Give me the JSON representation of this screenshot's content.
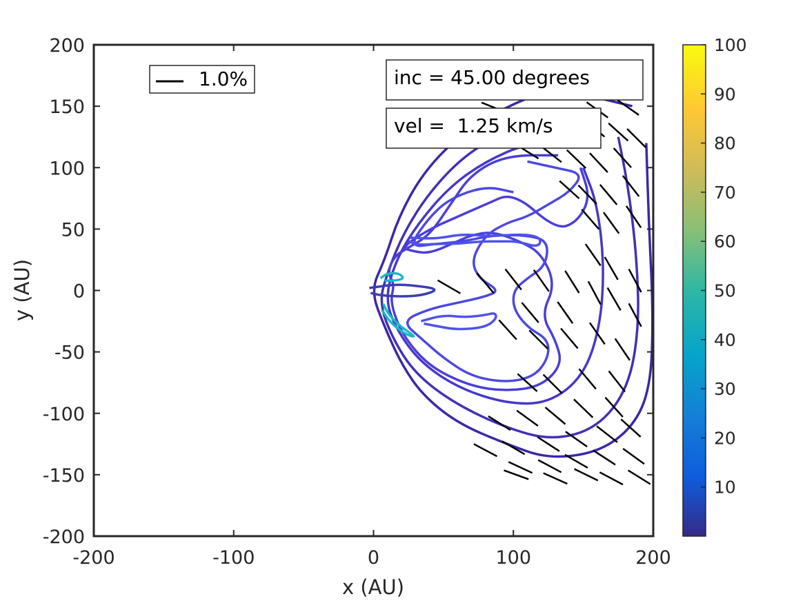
{
  "chart_data": {
    "type": "contour",
    "xlabel": "x (AU)",
    "ylabel": "y (AU)",
    "xlim": [
      -200,
      200
    ],
    "ylim": [
      -200,
      200
    ],
    "x_ticks": [
      "-200",
      "-100",
      "0",
      "100",
      "200"
    ],
    "y_ticks": [
      "200",
      "150",
      "100",
      "50",
      "0",
      "-50",
      "-100",
      "-150",
      "-200"
    ],
    "legend": {
      "label": "1.0%",
      "placement": "top-left"
    },
    "annotations": {
      "inclination": "inc = 45.00 degrees",
      "velocity": "vel =  1.25 km/s"
    },
    "colorbar": {
      "ticks": [
        "100",
        "90",
        "80",
        "70",
        "60",
        "50",
        "40",
        "30",
        "20",
        "10"
      ],
      "range": [
        0,
        100
      ],
      "colors": [
        "#352a87",
        "#0f5cdd",
        "#1481d6",
        "#06a4ca",
        "#2eb7a4",
        "#87bf77",
        "#d1bb59",
        "#fec832",
        "#f9fb0e"
      ]
    },
    "contours": [
      {
        "level": 3,
        "color": "#3e26a8",
        "points": [
          [
            185,
            150
          ],
          [
            160,
            157
          ],
          [
            130,
            165
          ],
          [
            95,
            150
          ],
          [
            60,
            125
          ],
          [
            35,
            95
          ],
          [
            18,
            60
          ],
          [
            8,
            25
          ],
          [
            -2,
            0
          ],
          [
            8,
            -30
          ],
          [
            20,
            -60
          ],
          [
            35,
            -85
          ],
          [
            60,
            -108
          ],
          [
            95,
            -125
          ],
          [
            125,
            -137
          ],
          [
            160,
            -132
          ],
          [
            185,
            -112
          ],
          [
            198,
            -80
          ],
          [
            200,
            -20
          ],
          [
            197,
            50
          ],
          [
            195,
            120
          ]
        ]
      },
      {
        "level": 5,
        "color": "#4131b5",
        "points": [
          [
            160,
            140
          ],
          [
            125,
            140
          ],
          [
            95,
            130
          ],
          [
            65,
            110
          ],
          [
            40,
            80
          ],
          [
            22,
            48
          ],
          [
            10,
            15
          ],
          [
            4,
            -10
          ],
          [
            14,
            -40
          ],
          [
            30,
            -68
          ],
          [
            58,
            -92
          ],
          [
            95,
            -112
          ],
          [
            128,
            -122
          ],
          [
            160,
            -112
          ],
          [
            182,
            -80
          ],
          [
            190,
            -30
          ],
          [
            188,
            30
          ],
          [
            182,
            85
          ],
          [
            175,
            125
          ]
        ]
      },
      {
        "level": 6,
        "color": "#4637c8",
        "points": [
          [
            140,
            120
          ],
          [
            110,
            120
          ],
          [
            80,
            105
          ],
          [
            55,
            85
          ],
          [
            32,
            55
          ],
          [
            16,
            25
          ],
          [
            8,
            -8
          ],
          [
            18,
            -35
          ],
          [
            35,
            -60
          ],
          [
            62,
            -80
          ],
          [
            95,
            -92
          ],
          [
            125,
            -92
          ],
          [
            150,
            -70
          ],
          [
            162,
            -30
          ],
          [
            165,
            20
          ],
          [
            160,
            70
          ],
          [
            150,
            100
          ]
        ]
      },
      {
        "level": 8,
        "color": "#4a3fd8",
        "points": [
          [
            132,
            110
          ],
          [
            95,
            110
          ],
          [
            70,
            95
          ],
          [
            55,
            70
          ],
          [
            40,
            45
          ],
          [
            25,
            35
          ],
          [
            15,
            28
          ],
          [
            10,
            15
          ],
          [
            15,
            5
          ],
          [
            12,
            -8
          ],
          [
            18,
            -30
          ],
          [
            30,
            -50
          ],
          [
            45,
            -65
          ],
          [
            70,
            -78
          ],
          [
            95,
            -82
          ],
          [
            120,
            -78
          ],
          [
            135,
            -60
          ],
          [
            130,
            -40
          ],
          [
            120,
            -20
          ],
          [
            130,
            5
          ],
          [
            120,
            30
          ],
          [
            105,
            40
          ],
          [
            85,
            48
          ],
          [
            70,
            45
          ],
          [
            60,
            40
          ],
          [
            40,
            30
          ],
          [
            28,
            32
          ],
          [
            20,
            35
          ],
          [
            40,
            50
          ],
          [
            60,
            60
          ],
          [
            80,
            70
          ],
          [
            100,
            80
          ],
          [
            130,
            50
          ],
          [
            145,
            55
          ],
          [
            155,
            75
          ],
          [
            148,
            100
          ]
        ]
      },
      {
        "level": 10,
        "color": "#4c48e0",
        "points": [
          [
            100,
            80
          ],
          [
            80,
            85
          ],
          [
            55,
            75
          ],
          [
            40,
            60
          ],
          [
            25,
            35
          ],
          [
            45,
            38
          ],
          [
            65,
            40
          ],
          [
            85,
            45
          ],
          [
            110,
            45
          ],
          [
            125,
            40
          ],
          [
            123,
            20
          ],
          [
            110,
            10
          ],
          [
            100,
            0
          ],
          [
            100,
            -15
          ],
          [
            110,
            -30
          ],
          [
            125,
            -40
          ],
          [
            125,
            -55
          ],
          [
            115,
            -70
          ],
          [
            95,
            -75
          ],
          [
            70,
            -70
          ],
          [
            50,
            -55
          ],
          [
            35,
            -40
          ],
          [
            20,
            -25
          ],
          [
            40,
            -15
          ],
          [
            60,
            -10
          ],
          [
            80,
            -5
          ],
          [
            90,
            0
          ],
          [
            75,
            10
          ],
          [
            70,
            25
          ],
          [
            80,
            45
          ],
          [
            95,
            55
          ],
          [
            110,
            60
          ],
          [
            125,
            70
          ],
          [
            140,
            80
          ],
          [
            150,
            95
          ],
          [
            130,
            100
          ],
          [
            110,
            105
          ]
        ]
      },
      {
        "level": 12,
        "color": "#4f52ea",
        "points": [
          [
            34,
            -25
          ],
          [
            50,
            -20
          ],
          [
            65,
            -22
          ],
          [
            80,
            -20
          ],
          [
            87,
            -18
          ],
          [
            88,
            -23
          ],
          [
            80,
            -30
          ],
          [
            60,
            -32
          ],
          [
            45,
            -29
          ],
          [
            36,
            -27
          ]
        ]
      },
      {
        "level": 12,
        "color": "#4f52ea",
        "points": [
          [
            26,
            43
          ],
          [
            45,
            42
          ],
          [
            63,
            46
          ],
          [
            84,
            44
          ],
          [
            107,
            46
          ],
          [
            120,
            43
          ],
          [
            118,
            35
          ],
          [
            103,
            40
          ],
          [
            92,
            40
          ],
          [
            76,
            40
          ],
          [
            60,
            38
          ],
          [
            45,
            38
          ],
          [
            32,
            37
          ],
          [
            25,
            40
          ]
        ]
      },
      {
        "level": 15,
        "color": "#3b3eb3",
        "points": [
          [
            -3,
            2
          ],
          [
            15,
            5
          ],
          [
            30,
            4
          ],
          [
            47,
            1
          ],
          [
            35,
            -4
          ],
          [
            20,
            -5
          ],
          [
            5,
            -4
          ],
          [
            -2,
            -2
          ]
        ]
      },
      {
        "level": 50,
        "color": "#19b9c2",
        "points": [
          [
            5,
            10
          ],
          [
            10,
            14
          ],
          [
            18,
            14
          ],
          [
            22,
            10
          ],
          [
            16,
            8
          ],
          [
            8,
            8
          ]
        ]
      },
      {
        "level": 50,
        "color": "#19b9c2",
        "points": [
          [
            7,
            -11
          ],
          [
            11,
            -20
          ],
          [
            20,
            -30
          ],
          [
            28,
            -36
          ],
          [
            29,
            -38
          ],
          [
            22,
            -35
          ],
          [
            12,
            -26
          ],
          [
            6,
            -16
          ]
        ]
      }
    ],
    "vectors": [
      {
        "x": 86,
        "y": 149,
        "angle": -22
      },
      {
        "x": 104,
        "y": 141,
        "angle": -26
      },
      {
        "x": 121,
        "y": 137,
        "angle": -30
      },
      {
        "x": 141,
        "y": 134,
        "angle": -35
      },
      {
        "x": 158,
        "y": 132,
        "angle": -40
      },
      {
        "x": 175,
        "y": 129,
        "angle": -42
      },
      {
        "x": 188,
        "y": 124,
        "angle": -45
      },
      {
        "x": 160,
        "y": 147,
        "angle": -36
      },
      {
        "x": 182,
        "y": 149,
        "angle": -35
      },
      {
        "x": 178,
        "y": 108,
        "angle": -48
      },
      {
        "x": 161,
        "y": 104,
        "angle": -47
      },
      {
        "x": 145,
        "y": 107,
        "angle": -44
      },
      {
        "x": 127,
        "y": 111,
        "angle": -38
      },
      {
        "x": 110,
        "y": 113,
        "angle": -32
      },
      {
        "x": 184,
        "y": 85,
        "angle": -52
      },
      {
        "x": 168,
        "y": 78,
        "angle": -50
      },
      {
        "x": 153,
        "y": 78,
        "angle": -46
      },
      {
        "x": 140,
        "y": 82,
        "angle": -42
      },
      {
        "x": 186,
        "y": 60,
        "angle": -56
      },
      {
        "x": 170,
        "y": 55,
        "angle": -54
      },
      {
        "x": 155,
        "y": 58,
        "angle": -49
      },
      {
        "x": 157,
        "y": 29,
        "angle": -55
      },
      {
        "x": 170,
        "y": 18,
        "angle": -60
      },
      {
        "x": 187,
        "y": 8,
        "angle": -62
      },
      {
        "x": 142,
        "y": 7,
        "angle": -58
      },
      {
        "x": 120,
        "y": 8,
        "angle": -55
      },
      {
        "x": 100,
        "y": 9,
        "angle": -52
      },
      {
        "x": 80,
        "y": 6,
        "angle": -50
      },
      {
        "x": 54,
        "y": 3,
        "angle": -30
      },
      {
        "x": 158,
        "y": -2,
        "angle": -62
      },
      {
        "x": 172,
        "y": -7,
        "angle": -60
      },
      {
        "x": 187,
        "y": -20,
        "angle": -62
      },
      {
        "x": 137,
        "y": -18,
        "angle": -55
      },
      {
        "x": 112,
        "y": -18,
        "angle": -50
      },
      {
        "x": 96,
        "y": -32,
        "angle": -48
      },
      {
        "x": 118,
        "y": -40,
        "angle": -45
      },
      {
        "x": 140,
        "y": -39,
        "angle": -50
      },
      {
        "x": 160,
        "y": -35,
        "angle": -55
      },
      {
        "x": 178,
        "y": -48,
        "angle": -56
      },
      {
        "x": 174,
        "y": -74,
        "angle": -52
      },
      {
        "x": 153,
        "y": -72,
        "angle": -50
      },
      {
        "x": 128,
        "y": -76,
        "angle": -45
      },
      {
        "x": 110,
        "y": -75,
        "angle": -42
      },
      {
        "x": 172,
        "y": -95,
        "angle": -48
      },
      {
        "x": 150,
        "y": -96,
        "angle": -44
      },
      {
        "x": 130,
        "y": -102,
        "angle": -40
      },
      {
        "x": 110,
        "y": -104,
        "angle": -36
      },
      {
        "x": 90,
        "y": -108,
        "angle": -32
      },
      {
        "x": 184,
        "y": -112,
        "angle": -42
      },
      {
        "x": 167,
        "y": -117,
        "angle": -38
      },
      {
        "x": 145,
        "y": -121,
        "angle": -35
      },
      {
        "x": 125,
        "y": -125,
        "angle": -33
      },
      {
        "x": 100,
        "y": -128,
        "angle": -30
      },
      {
        "x": 80,
        "y": -130,
        "angle": -28
      },
      {
        "x": 186,
        "y": -135,
        "angle": -36
      },
      {
        "x": 165,
        "y": -136,
        "angle": -33
      },
      {
        "x": 145,
        "y": -139,
        "angle": -30
      },
      {
        "x": 126,
        "y": -143,
        "angle": -28
      },
      {
        "x": 105,
        "y": -144,
        "angle": -25
      },
      {
        "x": 190,
        "y": -152,
        "angle": -32
      },
      {
        "x": 170,
        "y": -153,
        "angle": -28
      },
      {
        "x": 152,
        "y": -150,
        "angle": -26
      },
      {
        "x": 130,
        "y": -153,
        "angle": -24
      },
      {
        "x": 102,
        "y": -150,
        "angle": -20
      }
    ]
  }
}
